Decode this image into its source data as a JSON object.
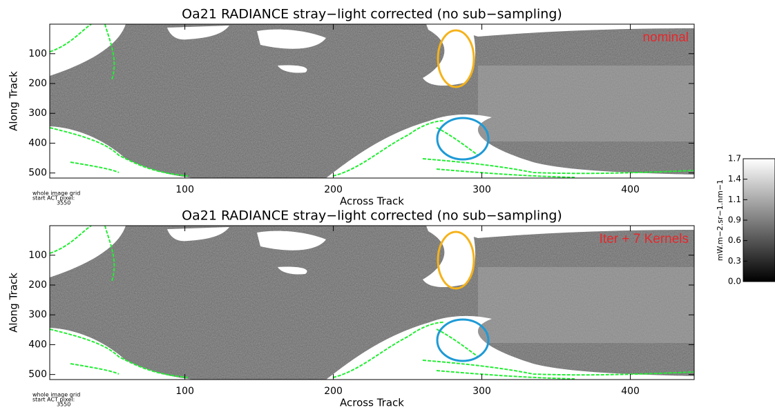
{
  "chart_data": [
    {
      "type": "image",
      "title": "Oa21 RADIANCE stray−light corrected (no sub−sampling)",
      "x_label": "Across Track",
      "y_label": "Along Track",
      "xlim": [
        9,
        443
      ],
      "ylim": [
        517,
        1
      ],
      "xticks": [
        100,
        200,
        300,
        400
      ],
      "yticks": [
        100,
        200,
        300,
        400,
        500
      ],
      "annotation": "nominal",
      "notes": [
        "whole image grid",
        "start ACT pixel:",
        "3550"
      ]
    },
    {
      "type": "image",
      "title": "Oa21 RADIANCE stray−light corrected (no sub−sampling)",
      "x_label": "Across Track",
      "y_label": "Along Track",
      "xlim": [
        9,
        443
      ],
      "ylim": [
        517,
        1
      ],
      "xticks": [
        100,
        200,
        300,
        400
      ],
      "yticks": [
        100,
        200,
        300,
        400,
        500
      ],
      "annotation": "Iter + 7 Kernels",
      "notes": [
        "whole image grid",
        "start ACT pixel:",
        "3550"
      ]
    },
    {
      "type": "colorbar",
      "label": "mW.m−2.sr−1.nm−1",
      "ylim": [
        0,
        1.7
      ],
      "yticks": [
        {
          "value": 0,
          "label": "0.0"
        },
        {
          "value": 0.283,
          "label": "0.3"
        },
        {
          "value": 0.567,
          "label": "0.6"
        },
        {
          "value": 0.85,
          "label": "0.9"
        },
        {
          "value": 1.133,
          "label": "1.1"
        },
        {
          "value": 1.417,
          "label": "1.4"
        },
        1.7
      ]
    }
  ]
}
